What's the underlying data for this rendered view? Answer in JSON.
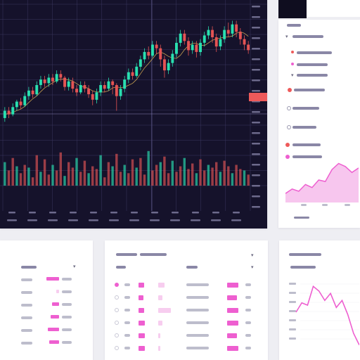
{
  "theme": {
    "background": "#eeeef3",
    "chart_background": "#15122b",
    "bull_color": "#29e0b0",
    "bear_color": "#e45454",
    "accent_pink": "#ee5fd0",
    "accent_red": "#ee5a5a",
    "grid_color": "#3b3760",
    "ma_color": "#f2c35a"
  },
  "icons": {
    "dropdown": "chevron-down-icon"
  },
  "chart_data": {
    "type": "candlestick",
    "candles": [
      {
        "o": 58,
        "c": 62,
        "h": 64,
        "l": 56
      },
      {
        "o": 62,
        "c": 60,
        "h": 64,
        "l": 58
      },
      {
        "o": 60,
        "c": 64,
        "h": 66,
        "l": 59
      },
      {
        "o": 64,
        "c": 67,
        "h": 68,
        "l": 62
      },
      {
        "o": 67,
        "c": 65,
        "h": 69,
        "l": 63
      },
      {
        "o": 65,
        "c": 70,
        "h": 72,
        "l": 64
      },
      {
        "o": 70,
        "c": 73,
        "h": 75,
        "l": 68
      },
      {
        "o": 73,
        "c": 71,
        "h": 75,
        "l": 69
      },
      {
        "o": 71,
        "c": 76,
        "h": 78,
        "l": 70
      },
      {
        "o": 76,
        "c": 79,
        "h": 81,
        "l": 74
      },
      {
        "o": 79,
        "c": 77,
        "h": 81,
        "l": 75
      },
      {
        "o": 77,
        "c": 80,
        "h": 82,
        "l": 75
      },
      {
        "o": 80,
        "c": 78,
        "h": 82,
        "l": 76
      },
      {
        "o": 78,
        "c": 82,
        "h": 84,
        "l": 77
      },
      {
        "o": 82,
        "c": 80,
        "h": 84,
        "l": 78
      },
      {
        "o": 80,
        "c": 75,
        "h": 81,
        "l": 73
      },
      {
        "o": 75,
        "c": 78,
        "h": 80,
        "l": 73
      },
      {
        "o": 78,
        "c": 74,
        "h": 80,
        "l": 72
      },
      {
        "o": 74,
        "c": 72,
        "h": 76,
        "l": 70
      },
      {
        "o": 72,
        "c": 76,
        "h": 78,
        "l": 71
      },
      {
        "o": 76,
        "c": 74,
        "h": 78,
        "l": 72
      },
      {
        "o": 74,
        "c": 71,
        "h": 76,
        "l": 69
      },
      {
        "o": 71,
        "c": 68,
        "h": 73,
        "l": 65
      },
      {
        "o": 68,
        "c": 72,
        "h": 74,
        "l": 66
      },
      {
        "o": 72,
        "c": 76,
        "h": 78,
        "l": 70
      },
      {
        "o": 76,
        "c": 74,
        "h": 78,
        "l": 72
      },
      {
        "o": 74,
        "c": 78,
        "h": 80,
        "l": 73
      },
      {
        "o": 78,
        "c": 76,
        "h": 79,
        "l": 71
      },
      {
        "o": 76,
        "c": 70,
        "h": 77,
        "l": 62
      },
      {
        "o": 70,
        "c": 74,
        "h": 76,
        "l": 68
      },
      {
        "o": 74,
        "c": 79,
        "h": 81,
        "l": 72
      },
      {
        "o": 79,
        "c": 83,
        "h": 85,
        "l": 77
      },
      {
        "o": 83,
        "c": 81,
        "h": 85,
        "l": 79
      },
      {
        "o": 81,
        "c": 86,
        "h": 88,
        "l": 80
      },
      {
        "o": 86,
        "c": 90,
        "h": 92,
        "l": 84
      },
      {
        "o": 90,
        "c": 94,
        "h": 96,
        "l": 88
      },
      {
        "o": 94,
        "c": 92,
        "h": 97,
        "l": 90
      },
      {
        "o": 92,
        "c": 98,
        "h": 100,
        "l": 91
      },
      {
        "o": 98,
        "c": 96,
        "h": 100,
        "l": 93
      },
      {
        "o": 96,
        "c": 90,
        "h": 98,
        "l": 86
      },
      {
        "o": 90,
        "c": 84,
        "h": 92,
        "l": 80
      },
      {
        "o": 84,
        "c": 88,
        "h": 90,
        "l": 82
      },
      {
        "o": 88,
        "c": 93,
        "h": 95,
        "l": 86
      },
      {
        "o": 93,
        "c": 99,
        "h": 102,
        "l": 91
      },
      {
        "o": 99,
        "c": 104,
        "h": 106,
        "l": 97
      },
      {
        "o": 104,
        "c": 100,
        "h": 106,
        "l": 98
      },
      {
        "o": 100,
        "c": 95,
        "h": 102,
        "l": 92
      },
      {
        "o": 95,
        "c": 98,
        "h": 100,
        "l": 93
      },
      {
        "o": 98,
        "c": 94,
        "h": 100,
        "l": 91
      },
      {
        "o": 94,
        "c": 99,
        "h": 101,
        "l": 92
      },
      {
        "o": 99,
        "c": 103,
        "h": 105,
        "l": 97
      },
      {
        "o": 103,
        "c": 106,
        "h": 108,
        "l": 101
      },
      {
        "o": 106,
        "c": 102,
        "h": 108,
        "l": 99
      },
      {
        "o": 102,
        "c": 97,
        "h": 104,
        "l": 94
      },
      {
        "o": 97,
        "c": 101,
        "h": 103,
        "l": 95
      },
      {
        "o": 101,
        "c": 106,
        "h": 108,
        "l": 99
      },
      {
        "o": 106,
        "c": 104,
        "h": 110,
        "l": 102
      },
      {
        "o": 104,
        "c": 109,
        "h": 111,
        "l": 102
      },
      {
        "o": 109,
        "c": 105,
        "h": 111,
        "l": 102
      },
      {
        "o": 105,
        "c": 101,
        "h": 107,
        "l": 98
      },
      {
        "o": 101,
        "c": 98,
        "h": 103,
        "l": 95
      },
      {
        "o": 98,
        "c": 95,
        "h": 100,
        "l": 93
      }
    ],
    "volumes": [
      34,
      22,
      40,
      28,
      18,
      30,
      26,
      12,
      44,
      20,
      38,
      16,
      30,
      22,
      48,
      14,
      34,
      26,
      40,
      20,
      36,
      18,
      28,
      24,
      44,
      12,
      34,
      28,
      46,
      20,
      30,
      18,
      38,
      26,
      40,
      16,
      50,
      22,
      30,
      34,
      42,
      18,
      36,
      20,
      28,
      40,
      24,
      32,
      18,
      38,
      22,
      30,
      26,
      34,
      20,
      36,
      28,
      18,
      30,
      24,
      22,
      16
    ],
    "ylim": [
      40,
      120
    ],
    "volume_max": 60,
    "grid": true,
    "series_colors": [
      "#29e0b0",
      "#e45454"
    ]
  },
  "area_chart": {
    "type": "area",
    "values": [
      12,
      18,
      15,
      24,
      20,
      30,
      28,
      44,
      52,
      48,
      40,
      46
    ],
    "ylim": [
      0,
      60
    ]
  },
  "line_chart": {
    "type": "line",
    "values": [
      30,
      38,
      36,
      52,
      48,
      40,
      46,
      34,
      40,
      28,
      12,
      2
    ],
    "ylim": [
      0,
      60
    ]
  },
  "table_mid": {
    "rows": [
      {
        "bar1": 0.8,
        "bar2": 0.3,
        "bar3": 0.9
      },
      {
        "bar1": 0.7,
        "bar2": 0.2,
        "bar3": 0.8
      },
      {
        "bar1": 0.8,
        "bar2": 0.6,
        "bar3": 0.9
      },
      {
        "bar1": 0.9,
        "bar2": 0.2,
        "bar3": 0.9
      },
      {
        "bar1": 0.9,
        "bar2": 0.1,
        "bar3": 0.8
      },
      {
        "bar1": 0.9,
        "bar2": 0.1,
        "bar3": 0.9
      }
    ]
  },
  "table_left": {
    "rows": [
      0.9,
      0.2,
      0.5,
      0.6,
      0.8,
      0.7
    ]
  }
}
